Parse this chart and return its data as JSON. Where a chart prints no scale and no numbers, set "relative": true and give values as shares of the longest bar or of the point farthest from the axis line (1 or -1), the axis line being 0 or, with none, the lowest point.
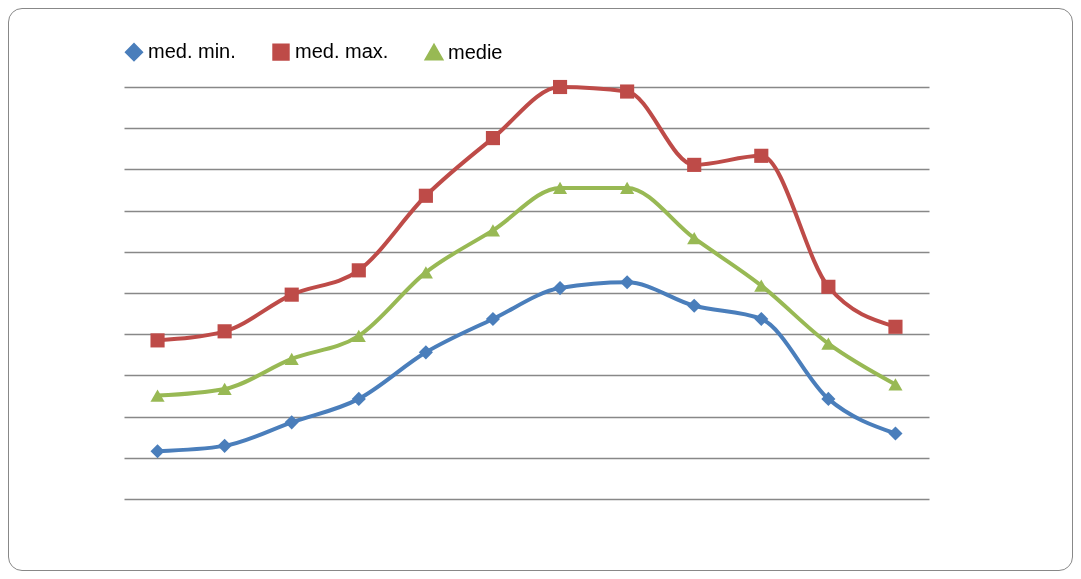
{
  "chart_data": {
    "type": "line",
    "relative": true,
    "categories": [
      null,
      null,
      null,
      null,
      null,
      null,
      null,
      null,
      null,
      null,
      null,
      null
    ],
    "grid": "y",
    "legend": "top",
    "series": [
      {
        "name": "med. min.",
        "color": "#4a7ebb",
        "marker": "diamond",
        "values": [
          0.116,
          0.129,
          0.186,
          0.243,
          0.356,
          0.437,
          0.512,
          0.526,
          0.469,
          0.437,
          0.243,
          0.159
        ]
      },
      {
        "name": "med. max.",
        "color": "#be4b48",
        "marker": "square",
        "values": [
          0.385,
          0.407,
          0.496,
          0.555,
          0.736,
          0.876,
          1,
          0.989,
          0.811,
          0.833,
          0.515,
          0.418
        ]
      },
      {
        "name": "medie",
        "color": "#98b954",
        "marker": "triangle",
        "values": [
          0.251,
          0.267,
          0.34,
          0.396,
          0.55,
          0.652,
          0.755,
          0.755,
          0.633,
          0.518,
          0.377,
          0.278
        ]
      }
    ]
  }
}
